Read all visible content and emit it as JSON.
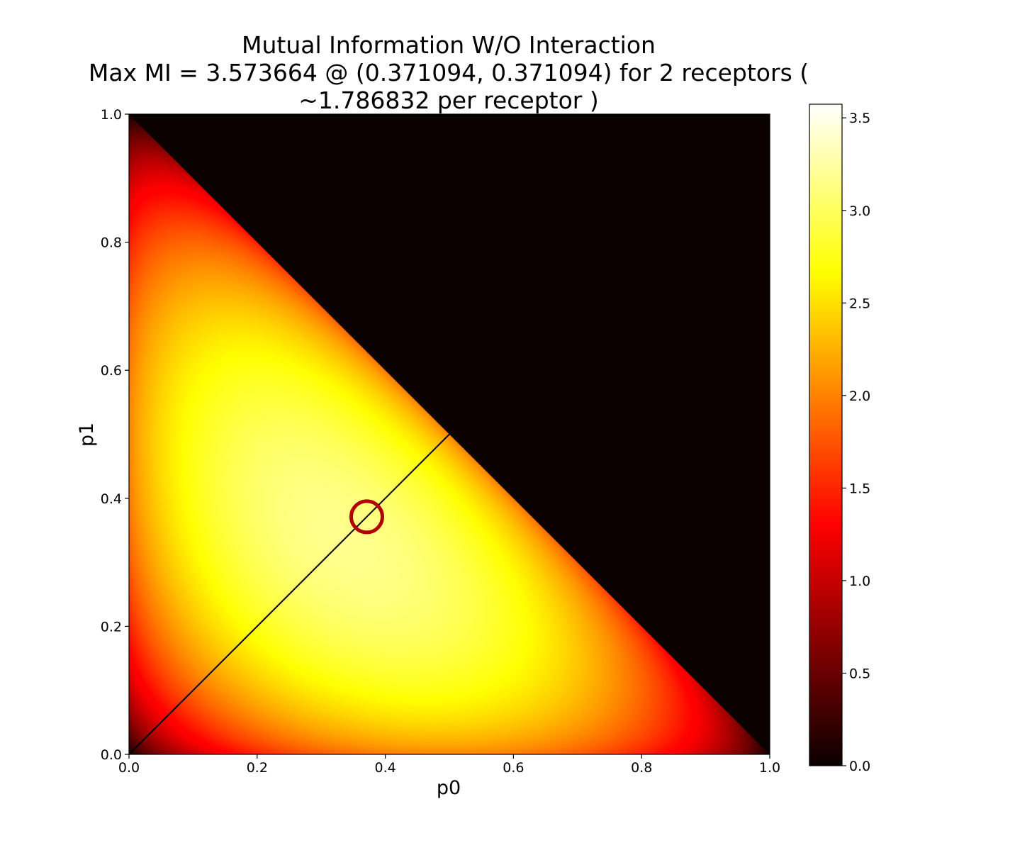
{
  "chart_data": [
    {
      "type": "heatmap",
      "title_lines": [
        "Mutual Information W/O Interaction",
        "Max MI = 3.573664 @ (0.371094, 0.371094) for 2 receptors (",
        "~1.786832 per receptor )"
      ],
      "xlabel": "p0",
      "ylabel": "p1",
      "xlim": [
        0.0,
        1.0
      ],
      "ylim": [
        0.0,
        1.0
      ],
      "x_ticks": [
        "0.0",
        "0.2",
        "0.4",
        "0.6",
        "0.8",
        "1.0"
      ],
      "y_ticks": [
        "0.0",
        "0.2",
        "0.4",
        "0.6",
        "0.8",
        "1.0"
      ],
      "colormap": "hot",
      "colorbar": {
        "min": 0.0,
        "max": 3.573664,
        "ticks": [
          "0.0",
          "0.5",
          "1.0",
          "1.5",
          "2.0",
          "2.5",
          "3.0",
          "3.5"
        ]
      },
      "valid_region": "p0 + p1 <= 1",
      "invalid_region_value": 0.0,
      "diagonal_line": {
        "from": [
          0.0,
          0.0
        ],
        "to": [
          0.5,
          0.5
        ],
        "color": "#000000"
      },
      "max_marker": {
        "x": 0.371094,
        "y": 0.371094,
        "shape": "circle",
        "color": "#b00000"
      },
      "max_value": 3.573664
    }
  ]
}
